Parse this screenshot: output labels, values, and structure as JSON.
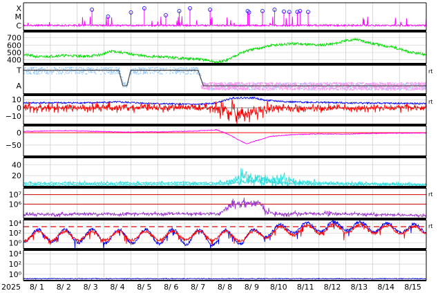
{
  "chart_data": {
    "type": "line",
    "year_label": "2025",
    "x_labels": [
      "8/ 1",
      "8/ 2",
      "8/ 3",
      "8/ 4",
      "8/ 5",
      "8/ 6",
      "8/ 7",
      "8/ 8",
      "8/ 9",
      "8/10",
      "8/11",
      "8/12",
      "8/13",
      "8/14",
      "8/15"
    ],
    "x_range": [
      0,
      15
    ],
    "panels": [
      {
        "id": "xray-flares",
        "ytick_labels": [
          "X",
          "M",
          "C"
        ],
        "series": [
          {
            "color": "#ff00ff",
            "kind": "baseline",
            "seed": 11,
            "level": [
              [
                0,
                0.82
              ],
              [
                15,
                0.82
              ]
            ],
            "noise": 0.06
          }
        ],
        "markers": {
          "color": "#2b2bff",
          "points": [
            [
              2.55,
              0.25
            ],
            [
              3.15,
              0.5
            ],
            [
              4.0,
              0.35
            ],
            [
              4.5,
              0.2
            ],
            [
              5.3,
              0.45
            ],
            [
              5.8,
              0.3
            ],
            [
              6.2,
              0.2
            ],
            [
              6.95,
              0.25
            ],
            [
              8.35,
              0.3
            ],
            [
              8.4,
              0.35
            ],
            [
              8.9,
              0.3
            ],
            [
              9.35,
              0.25
            ],
            [
              9.7,
              0.32
            ],
            [
              9.9,
              0.33
            ],
            [
              10.2,
              0.33
            ],
            [
              10.3,
              0.3
            ],
            [
              10.6,
              0.33
            ]
          ]
        }
      },
      {
        "id": "solar-wind-speed",
        "ytick_labels": [
          "700",
          "600",
          "500",
          "400"
        ],
        "ylim": [
          350,
          780
        ],
        "yticks": [
          700,
          600,
          500,
          400
        ],
        "series": [
          {
            "color": "#00dd00",
            "kind": "profile",
            "seed": 21,
            "noise": 18,
            "profile": [
              [
                0,
                470
              ],
              [
                0.6,
                440
              ],
              [
                1.4,
                460
              ],
              [
                2.4,
                450
              ],
              [
                2.9,
                470
              ],
              [
                3.3,
                520
              ],
              [
                4.0,
                480
              ],
              [
                4.5,
                450
              ],
              [
                5.2,
                440
              ],
              [
                6.0,
                420
              ],
              [
                6.8,
                400
              ],
              [
                7.2,
                365
              ],
              [
                7.6,
                400
              ],
              [
                8.0,
                480
              ],
              [
                8.3,
                520
              ],
              [
                8.8,
                560
              ],
              [
                9.3,
                600
              ],
              [
                10.2,
                620
              ],
              [
                11.0,
                600
              ],
              [
                11.6,
                620
              ],
              [
                12.0,
                660
              ],
              [
                12.4,
                680
              ],
              [
                12.8,
                640
              ],
              [
                13.3,
                600
              ],
              [
                13.8,
                570
              ],
              [
                14.3,
                510
              ],
              [
                14.8,
                480
              ],
              [
                15,
                470
              ]
            ]
          }
        ]
      },
      {
        "id": "imf-sector",
        "ytick_labels": [
          "T",
          "A"
        ],
        "right_label": "rt",
        "series": [
          {
            "color": "#99ccff",
            "kind": "band",
            "seed": 31,
            "noise": 0.07,
            "profile": [
              [
                0,
                0.18
              ],
              [
                3.55,
                0.18
              ],
              [
                3.7,
                0.65
              ],
              [
                3.85,
                0.65
              ],
              [
                4.0,
                0.18
              ],
              [
                6.5,
                0.18
              ],
              [
                6.7,
                0.72
              ],
              [
                15,
                0.72
              ]
            ],
            "spread": [
              [
                0,
                0.12
              ],
              [
                15,
                0.12
              ]
            ]
          },
          {
            "color": "#ff99ee",
            "kind": "band",
            "seed": 32,
            "noise": 0.07,
            "profile": [
              [
                0,
                0.72
              ],
              [
                3.6,
                0.72
              ],
              [
                3.7,
                0.6
              ],
              [
                4.0,
                0.72
              ],
              [
                6.6,
                0.72
              ],
              [
                6.7,
                0.72
              ],
              [
                15,
                0.72
              ]
            ],
            "spread": [
              [
                0,
                0.05
              ],
              [
                6.6,
                0.05
              ],
              [
                6.7,
                0.13
              ],
              [
                15,
                0.13
              ]
            ],
            "start": 6.6
          },
          {
            "color": "#444444",
            "kind": "steps",
            "points": [
              [
                0,
                0.18
              ],
              [
                3.55,
                0.18
              ],
              [
                3.7,
                0.72
              ],
              [
                3.85,
                0.72
              ],
              [
                4.0,
                0.18
              ],
              [
                6.5,
                0.18
              ],
              [
                6.7,
                0.72
              ],
              [
                15,
                0.72
              ]
            ]
          }
        ]
      },
      {
        "id": "imf-bz-bt",
        "ytick_labels": [
          "10",
          "0",
          "−10"
        ],
        "ylim": [
          -20,
          15
        ],
        "yticks": [
          10,
          0,
          -10
        ],
        "right_label": "rt",
        "zero_line": true,
        "series": [
          {
            "color": "#0000ff",
            "kind": "profile",
            "seed": 41,
            "noise": 1.0,
            "profile": [
              [
                0,
                6
              ],
              [
                2.5,
                6
              ],
              [
                3.5,
                7
              ],
              [
                5,
                5
              ],
              [
                6.5,
                4
              ],
              [
                7.2,
                6
              ],
              [
                7.8,
                12
              ],
              [
                8.6,
                12
              ],
              [
                9.0,
                9
              ],
              [
                10,
                7
              ],
              [
                12,
                6
              ],
              [
                15,
                5
              ]
            ]
          },
          {
            "color": "#ff0000",
            "kind": "spiky",
            "seed": 42,
            "noise": 4,
            "profile": [
              [
                0,
                0
              ],
              [
                6.8,
                0
              ],
              [
                7.8,
                -5
              ],
              [
                8.3,
                -7
              ],
              [
                8.8,
                -3
              ],
              [
                9.5,
                -1
              ],
              [
                15,
                0
              ]
            ],
            "amp": [
              [
                0,
                4
              ],
              [
                6.8,
                3
              ],
              [
                7.8,
                10
              ],
              [
                8.8,
                8
              ],
              [
                9.5,
                4
              ],
              [
                15,
                3
              ]
            ]
          }
        ]
      },
      {
        "id": "dst-index",
        "ytick_labels": [
          "0",
          "−50"
        ],
        "ylim": [
          -95,
          28
        ],
        "yticks": [
          0,
          -50
        ],
        "zero_line": true,
        "zero_color": "#ff0000",
        "series": [
          {
            "color": "#ff00ff",
            "kind": "profile",
            "seed": 51,
            "noise": 1.5,
            "profile": [
              [
                0,
                5
              ],
              [
                1.5,
                8
              ],
              [
                2.5,
                6
              ],
              [
                3.5,
                3
              ],
              [
                5,
                3
              ],
              [
                6.5,
                7
              ],
              [
                7.2,
                12
              ],
              [
                7.6,
                -5
              ],
              [
                8.0,
                -28
              ],
              [
                8.3,
                -45
              ],
              [
                8.6,
                -35
              ],
              [
                9.2,
                -15
              ],
              [
                10,
                -8
              ],
              [
                11,
                -5
              ],
              [
                12,
                -6
              ],
              [
                13,
                -3
              ],
              [
                14,
                -2
              ],
              [
                15,
                -1
              ]
            ]
          }
        ]
      },
      {
        "id": "proton-density",
        "ytick_labels": [
          "40",
          "20"
        ],
        "ylim": [
          0,
          53
        ],
        "yticks": [
          40,
          20
        ],
        "series": [
          {
            "color": "#33dddd",
            "kind": "spiky",
            "seed": 61,
            "noise": 2,
            "profile": [
              [
                0,
                6
              ],
              [
                7.5,
                7
              ],
              [
                8.0,
                15
              ],
              [
                8.5,
                18
              ],
              [
                9.0,
                13
              ],
              [
                9.5,
                12
              ],
              [
                10,
                8
              ],
              [
                11,
                7
              ],
              [
                12,
                6
              ],
              [
                13,
                5
              ],
              [
                15,
                4
              ]
            ],
            "amp": [
              [
                0,
                2
              ],
              [
                7.5,
                2
              ],
              [
                8.0,
                12
              ],
              [
                9.0,
                9
              ],
              [
                9.5,
                14
              ],
              [
                10.2,
                6
              ],
              [
                11,
                3
              ],
              [
                15,
                2
              ]
            ]
          },
          {
            "color": "#33dddd",
            "kind": "spiky",
            "seed": 62,
            "noise": 1.5,
            "profile": [
              [
                0,
                3
              ],
              [
                7.5,
                4
              ],
              [
                8.2,
                10
              ],
              [
                9.0,
                9
              ],
              [
                10,
                5
              ],
              [
                15,
                3
              ]
            ],
            "amp": [
              [
                0,
                1.5
              ],
              [
                7.5,
                1.5
              ],
              [
                8.2,
                6
              ],
              [
                9.5,
                5
              ],
              [
                10.5,
                2
              ],
              [
                15,
                1.5
              ]
            ]
          }
        ]
      },
      {
        "id": "electron-flux",
        "ytick_labels": [
          "10⁷",
          "10⁶"
        ],
        "ylim": [
          4.5,
          7.7
        ],
        "yticks": [
          7,
          6
        ],
        "yscale": "log",
        "right_label": "rt",
        "red_lines": [
          7,
          6
        ],
        "series": [
          {
            "color": "#9933cc",
            "kind": "spiky",
            "seed": 71,
            "noise": 0.15,
            "profile": [
              [
                0,
                4.9
              ],
              [
                7.3,
                5.0
              ],
              [
                7.6,
                5.6
              ],
              [
                7.9,
                6.1
              ],
              [
                8.8,
                6.1
              ],
              [
                9.0,
                5.3
              ],
              [
                9.5,
                4.9
              ],
              [
                10.5,
                5.0
              ],
              [
                11.5,
                5.0
              ],
              [
                12.5,
                4.95
              ],
              [
                13.5,
                4.85
              ],
              [
                15,
                4.8
              ]
            ],
            "amp": [
              [
                0,
                0.15
              ],
              [
                7.3,
                0.15
              ],
              [
                7.8,
                0.4
              ],
              [
                8.8,
                0.3
              ],
              [
                9.5,
                0.2
              ],
              [
                15,
                0.1
              ]
            ]
          }
        ]
      },
      {
        "id": "proton-flux",
        "ytick_labels": [
          "10⁴",
          "10²",
          "10⁰"
        ],
        "ylim": [
          -1.2,
          4.7
        ],
        "yticks": [
          4,
          2,
          0
        ],
        "yscale": "log",
        "right_label": "rt",
        "dashed_line": 3.3,
        "series": [
          {
            "color": "#0000ee",
            "kind": "diurnal",
            "seed": 81,
            "noise": 0.3,
            "base": [
              [
                0,
                1.5
              ],
              [
                7.3,
                1.2
              ],
              [
                8.2,
                1.0
              ],
              [
                9.0,
                2.3
              ],
              [
                10,
                3.0
              ],
              [
                12,
                3.5
              ],
              [
                13,
                3.2
              ],
              [
                15,
                2.8
              ]
            ],
            "amp": [
              [
                0,
                1.2
              ],
              [
                7.3,
                1.6
              ],
              [
                8.2,
                1.2
              ],
              [
                9.5,
                1.0
              ],
              [
                15,
                0.9
              ]
            ]
          },
          {
            "color": "#ff0000",
            "kind": "diurnal",
            "seed": 82,
            "noise": 0.3,
            "base": [
              [
                0,
                1.4
              ],
              [
                7.3,
                1.5
              ],
              [
                8.2,
                1.2
              ],
              [
                9.0,
                2.0
              ],
              [
                10,
                2.5
              ],
              [
                12,
                3.0
              ],
              [
                15,
                2.5
              ]
            ],
            "amp": [
              [
                0,
                0.9
              ],
              [
                7.3,
                0.9
              ],
              [
                9,
                1.0
              ],
              [
                15,
                0.8
              ]
            ]
          }
        ]
      },
      {
        "id": "energetic-particles",
        "ytick_labels": [
          "10⁴",
          "10²",
          "10⁰"
        ],
        "ylim": [
          -1.2,
          4.7
        ],
        "yticks": [
          4,
          2,
          0
        ],
        "yscale": "log",
        "series": [
          {
            "color": "#0000cc",
            "kind": "profile",
            "seed": 91,
            "noise": 0.08,
            "profile": [
              [
                0,
                -0.85
              ],
              [
                15,
                -0.85
              ]
            ]
          }
        ]
      }
    ]
  }
}
